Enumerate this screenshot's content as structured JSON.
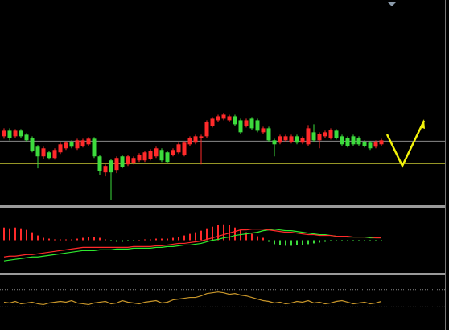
{
  "chart_data": [
    {
      "type": "candlestick",
      "up_color": "#ff2a2a",
      "down_color": "#3ddc3d",
      "ylim": [
        0,
        256
      ],
      "hlines": [
        {
          "value": 80,
          "color": "#8a8a8a"
        },
        {
          "value": 52,
          "color": "#c8c832"
        }
      ],
      "candles": [
        [
          86,
          96,
          83,
          93
        ],
        [
          93,
          96,
          81,
          84
        ],
        [
          86,
          95,
          84,
          93
        ],
        [
          93,
          95,
          84,
          86
        ],
        [
          88,
          90,
          79,
          81
        ],
        [
          84,
          86,
          66,
          68
        ],
        [
          73,
          75,
          46,
          61
        ],
        [
          61,
          73,
          58,
          71
        ],
        [
          66,
          68,
          57,
          59
        ],
        [
          59,
          71,
          57,
          69
        ],
        [
          66,
          78,
          64,
          76
        ],
        [
          71,
          80,
          69,
          78
        ],
        [
          79,
          81,
          71,
          73
        ],
        [
          71,
          83,
          69,
          81
        ],
        [
          74,
          83,
          72,
          81
        ],
        [
          76,
          85,
          74,
          83
        ],
        [
          83,
          85,
          59,
          61
        ],
        [
          61,
          63,
          38,
          43
        ],
        [
          41,
          51,
          36,
          49
        ],
        [
          56,
          58,
          6,
          41
        ],
        [
          44,
          61,
          40,
          59
        ],
        [
          61,
          63,
          46,
          48
        ],
        [
          51,
          63,
          49,
          61
        ],
        [
          53,
          61,
          51,
          59
        ],
        [
          56,
          65,
          54,
          63
        ],
        [
          56,
          68,
          54,
          66
        ],
        [
          58,
          70,
          56,
          68
        ],
        [
          61,
          73,
          59,
          71
        ],
        [
          69,
          71,
          54,
          56
        ],
        [
          66,
          68,
          52,
          54
        ],
        [
          63,
          71,
          61,
          69
        ],
        [
          66,
          78,
          64,
          76
        ],
        [
          63,
          80,
          61,
          78
        ],
        [
          76,
          86,
          74,
          84
        ],
        [
          78,
          88,
          76,
          86
        ],
        [
          84,
          88,
          51,
          86
        ],
        [
          86,
          106,
          84,
          104
        ],
        [
          99,
          110,
          97,
          108
        ],
        [
          106,
          113,
          104,
          111
        ],
        [
          108,
          115,
          106,
          113
        ],
        [
          106,
          113,
          104,
          111
        ],
        [
          111,
          113,
          99,
          101
        ],
        [
          106,
          108,
          89,
          91
        ],
        [
          99,
          108,
          97,
          106
        ],
        [
          108,
          110,
          94,
          96
        ],
        [
          106,
          108,
          91,
          93
        ],
        [
          91,
          98,
          89,
          96
        ],
        [
          96,
          98,
          79,
          81
        ],
        [
          81,
          83,
          61,
          76
        ],
        [
          78,
          88,
          76,
          86
        ],
        [
          81,
          88,
          79,
          86
        ],
        [
          79,
          88,
          77,
          86
        ],
        [
          86,
          88,
          76,
          78
        ],
        [
          78,
          86,
          76,
          84
        ],
        [
          76,
          100,
          74,
          96
        ],
        [
          91,
          101,
          79,
          81
        ],
        [
          81,
          91,
          71,
          89
        ],
        [
          86,
          93,
          84,
          91
        ],
        [
          84,
          96,
          82,
          94
        ],
        [
          93,
          95,
          82,
          84
        ],
        [
          86,
          88,
          74,
          76
        ],
        [
          84,
          86,
          72,
          74
        ],
        [
          86,
          88,
          74,
          76
        ],
        [
          84,
          86,
          74,
          76
        ],
        [
          79,
          81,
          72,
          74
        ],
        [
          78,
          80,
          69,
          71
        ],
        [
          73,
          81,
          71,
          79
        ],
        [
          76,
          83,
          74,
          81
        ]
      ]
    },
    {
      "type": "macd",
      "ylim": [
        -41,
        41
      ],
      "up_color": "#ff2a2a",
      "down_color": "#3ddc3d",
      "histogram": [
        16,
        15,
        16,
        15,
        13,
        10,
        6,
        3,
        2,
        1,
        1,
        1,
        1,
        2,
        3,
        4,
        4,
        3,
        1,
        -1,
        -2,
        -2,
        -1,
        -1,
        0,
        1,
        1,
        2,
        2,
        2,
        3,
        4,
        6,
        8,
        10,
        12,
        15,
        17,
        19,
        20,
        19,
        16,
        13,
        10,
        8,
        5,
        3,
        -2,
        -5,
        -6,
        -7,
        -7,
        -6,
        -6,
        -5,
        -4,
        -3,
        -2,
        -1,
        -1,
        -1,
        -1,
        -1,
        -1,
        -1,
        -1,
        -1,
        -1
      ],
      "series": [
        {
          "color": "#2ee82e",
          "values": [
            -26,
            -25,
            -24,
            -23,
            -22,
            -21,
            -21,
            -20,
            -19,
            -18,
            -17,
            -16,
            -15,
            -14,
            -13,
            -13,
            -13,
            -12,
            -12,
            -12,
            -11,
            -11,
            -11,
            -10,
            -10,
            -10,
            -10,
            -9,
            -9,
            -8,
            -8,
            -7,
            -6,
            -6,
            -5,
            -4,
            -2,
            0,
            1,
            3,
            4,
            6,
            7,
            8,
            9,
            10,
            12,
            13,
            14,
            13,
            12,
            12,
            11,
            10,
            9,
            8,
            7,
            7,
            6,
            5,
            5,
            4,
            4,
            4,
            4,
            3,
            3,
            3
          ]
        },
        {
          "color": "#ff2a2a",
          "values": [
            -21,
            -20,
            -20,
            -19,
            -18,
            -18,
            -17,
            -16,
            -15,
            -14,
            -13,
            -12,
            -11,
            -10,
            -9,
            -9,
            -9,
            -9,
            -9,
            -9,
            -9,
            -9,
            -9,
            -8,
            -8,
            -8,
            -8,
            -7,
            -7,
            -6,
            -5,
            -4,
            -4,
            -3,
            -2,
            -1,
            1,
            3,
            5,
            7,
            9,
            11,
            13,
            13,
            14,
            14,
            14,
            13,
            12,
            11,
            10,
            10,
            9,
            8,
            7,
            7,
            6,
            6,
            6,
            5,
            5,
            5,
            4,
            4,
            4,
            4,
            3,
            3
          ]
        }
      ]
    },
    {
      "type": "line",
      "ylim": [
        0,
        66
      ],
      "levels": [
        48,
        26
      ],
      "color": "#c8962a",
      "values": [
        32,
        31,
        33,
        30,
        31,
        32,
        30,
        29,
        31,
        32,
        33,
        32,
        34,
        31,
        30,
        29,
        31,
        32,
        33,
        30,
        31,
        34,
        32,
        31,
        30,
        32,
        33,
        34,
        31,
        32,
        35,
        36,
        37,
        38,
        38,
        40,
        43,
        44,
        45,
        44,
        42,
        43,
        41,
        40,
        38,
        36,
        34,
        33,
        31,
        32,
        30,
        31,
        33,
        32,
        34,
        31,
        32,
        30,
        31,
        33,
        34,
        32,
        30,
        31,
        32,
        30,
        31,
        33
      ]
    }
  ]
}
